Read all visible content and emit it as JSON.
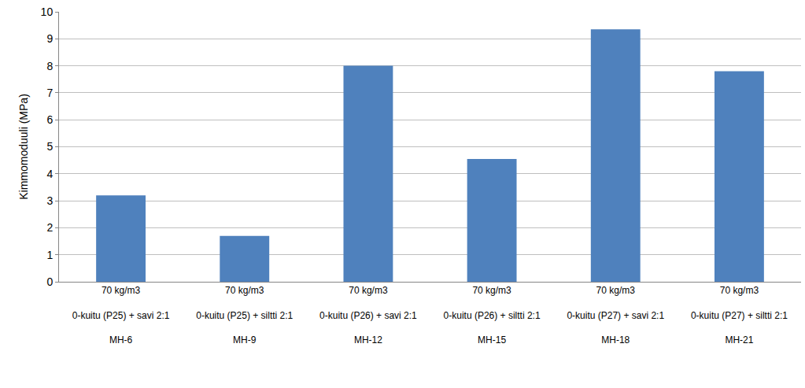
{
  "chart_data": {
    "type": "bar",
    "y_label": "Kimmomoduuli (MPa)",
    "categories": [
      [
        "70 kg/m3",
        "0-kuitu (P25) + savi 2:1",
        "MH-6"
      ],
      [
        "70 kg/m3",
        "0-kuitu (P25) + siltti 2:1",
        "MH-9"
      ],
      [
        "70 kg/m3",
        "0-kuitu (P26) + savi 2:1",
        "MH-12"
      ],
      [
        "70 kg/m3",
        "0-kuitu (P26) + siltti 2:1",
        "MH-15"
      ],
      [
        "70 kg/m3",
        "0-kuitu (P27) + savi 2:1",
        "MH-18"
      ],
      [
        "70 kg/m3",
        "0-kuitu (P27) + siltti 2:1",
        "MH-21"
      ]
    ],
    "values": [
      3.2,
      1.7,
      8.0,
      4.55,
      9.35,
      7.8
    ],
    "color": "#4f81bd",
    "ylim": [
      0,
      10
    ],
    "yticks": [
      0,
      1,
      2,
      3,
      4,
      5,
      6,
      7,
      8,
      9,
      10
    ],
    "grid": true
  }
}
